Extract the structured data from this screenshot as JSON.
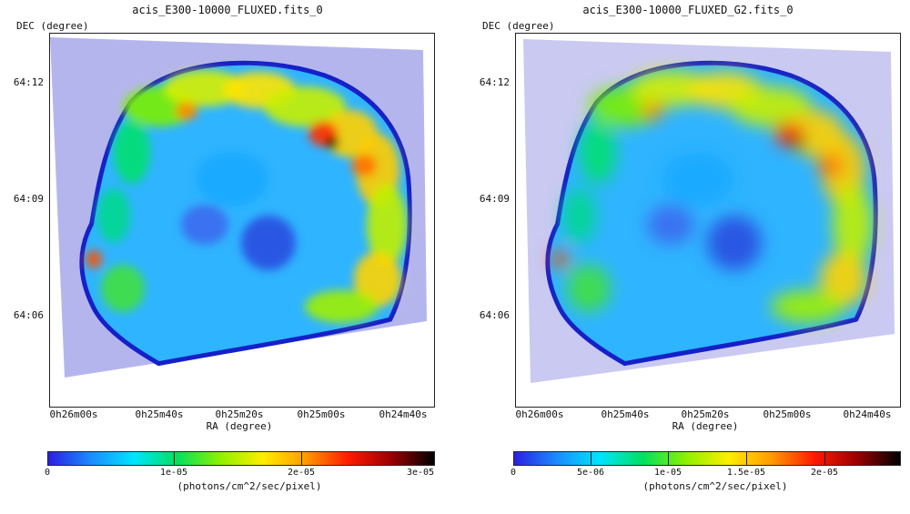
{
  "chart_data": [
    {
      "type": "heatmap",
      "title": "acis_E300-10000_FLUXED.fits_0",
      "xlabel": "RA (degree)",
      "ylabel": "DEC (degree)",
      "x_ticks": [
        "0h26m00s",
        "0h25m40s",
        "0h25m20s",
        "0h25m00s",
        "0h24m40s"
      ],
      "y_ticks": [
        "64:12",
        "64:09",
        "64:06"
      ],
      "colorbar": {
        "ticks": [
          "0",
          "1e-05",
          "2e-05",
          "3e-05"
        ],
        "tick_values": [
          0,
          1e-05,
          2e-05,
          3e-05
        ],
        "range": [
          0,
          3e-05
        ],
        "label": "(photons/cm^2/sec/pixel)"
      }
    },
    {
      "type": "heatmap",
      "title": "acis_E300-10000_FLUXED_G2.fits_0",
      "xlabel": "RA (degree)",
      "ylabel": "DEC (degree)",
      "x_ticks": [
        "0h26m00s",
        "0h25m40s",
        "0h25m20s",
        "0h25m00s",
        "0h24m40s"
      ],
      "y_ticks": [
        "64:12",
        "64:09",
        "64:06"
      ],
      "colorbar": {
        "ticks": [
          "0",
          "5e-06",
          "1e-05",
          "1.5e-05",
          "2e-05"
        ],
        "tick_values": [
          0,
          5e-06,
          1e-05,
          1.5e-05,
          2e-05
        ],
        "range": [
          0,
          2.5e-05
        ],
        "label": "(photons/cm^2/sec/pixel)"
      }
    }
  ],
  "colors": {
    "colormap": [
      "#2a1fe0",
      "#1a8cff",
      "#00e5ff",
      "#00e060",
      "#8cf000",
      "#ffee00",
      "#ff9a00",
      "#ff1a00",
      "#9a0000",
      "#000000"
    ],
    "background_field": "#9c9ce8",
    "remnant_base": "#2fb4ff"
  }
}
